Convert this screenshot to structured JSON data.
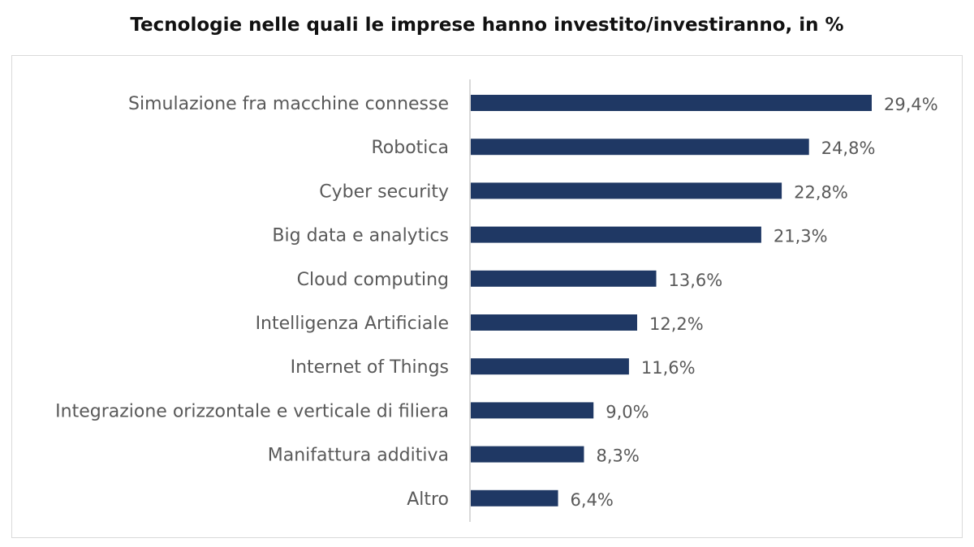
{
  "title": "Tecnologie nelle quali le imprese hanno investito/investiranno, in %",
  "colors": {
    "bar": "#1f3864",
    "axis": "#d9d9d9",
    "label": "#595959"
  },
  "chart_data": {
    "type": "bar",
    "orientation": "horizontal",
    "title": "Tecnologie nelle quali le imprese hanno investito/investiranno, in %",
    "xlabel": "",
    "ylabel": "",
    "grid": false,
    "legend": "none",
    "xlim": [
      0,
      29.4
    ],
    "categories": [
      "Simulazione fra macchine connesse",
      "Robotica",
      "Cyber security",
      "Big data e analytics",
      "Cloud computing",
      "Intelligenza Artificiale",
      "Internet of Things",
      "Integrazione orizzontale e verticale di filiera",
      "Manifattura additiva",
      "Altro"
    ],
    "values": [
      29.4,
      24.8,
      22.8,
      21.3,
      13.6,
      12.2,
      11.6,
      9.0,
      8.3,
      6.4
    ],
    "value_labels": [
      "29,4%",
      "24,8%",
      "22,8%",
      "21,3%",
      "13,6%",
      "12,2%",
      "11,6%",
      "9,0%",
      "8,3%",
      "6,4%"
    ]
  }
}
